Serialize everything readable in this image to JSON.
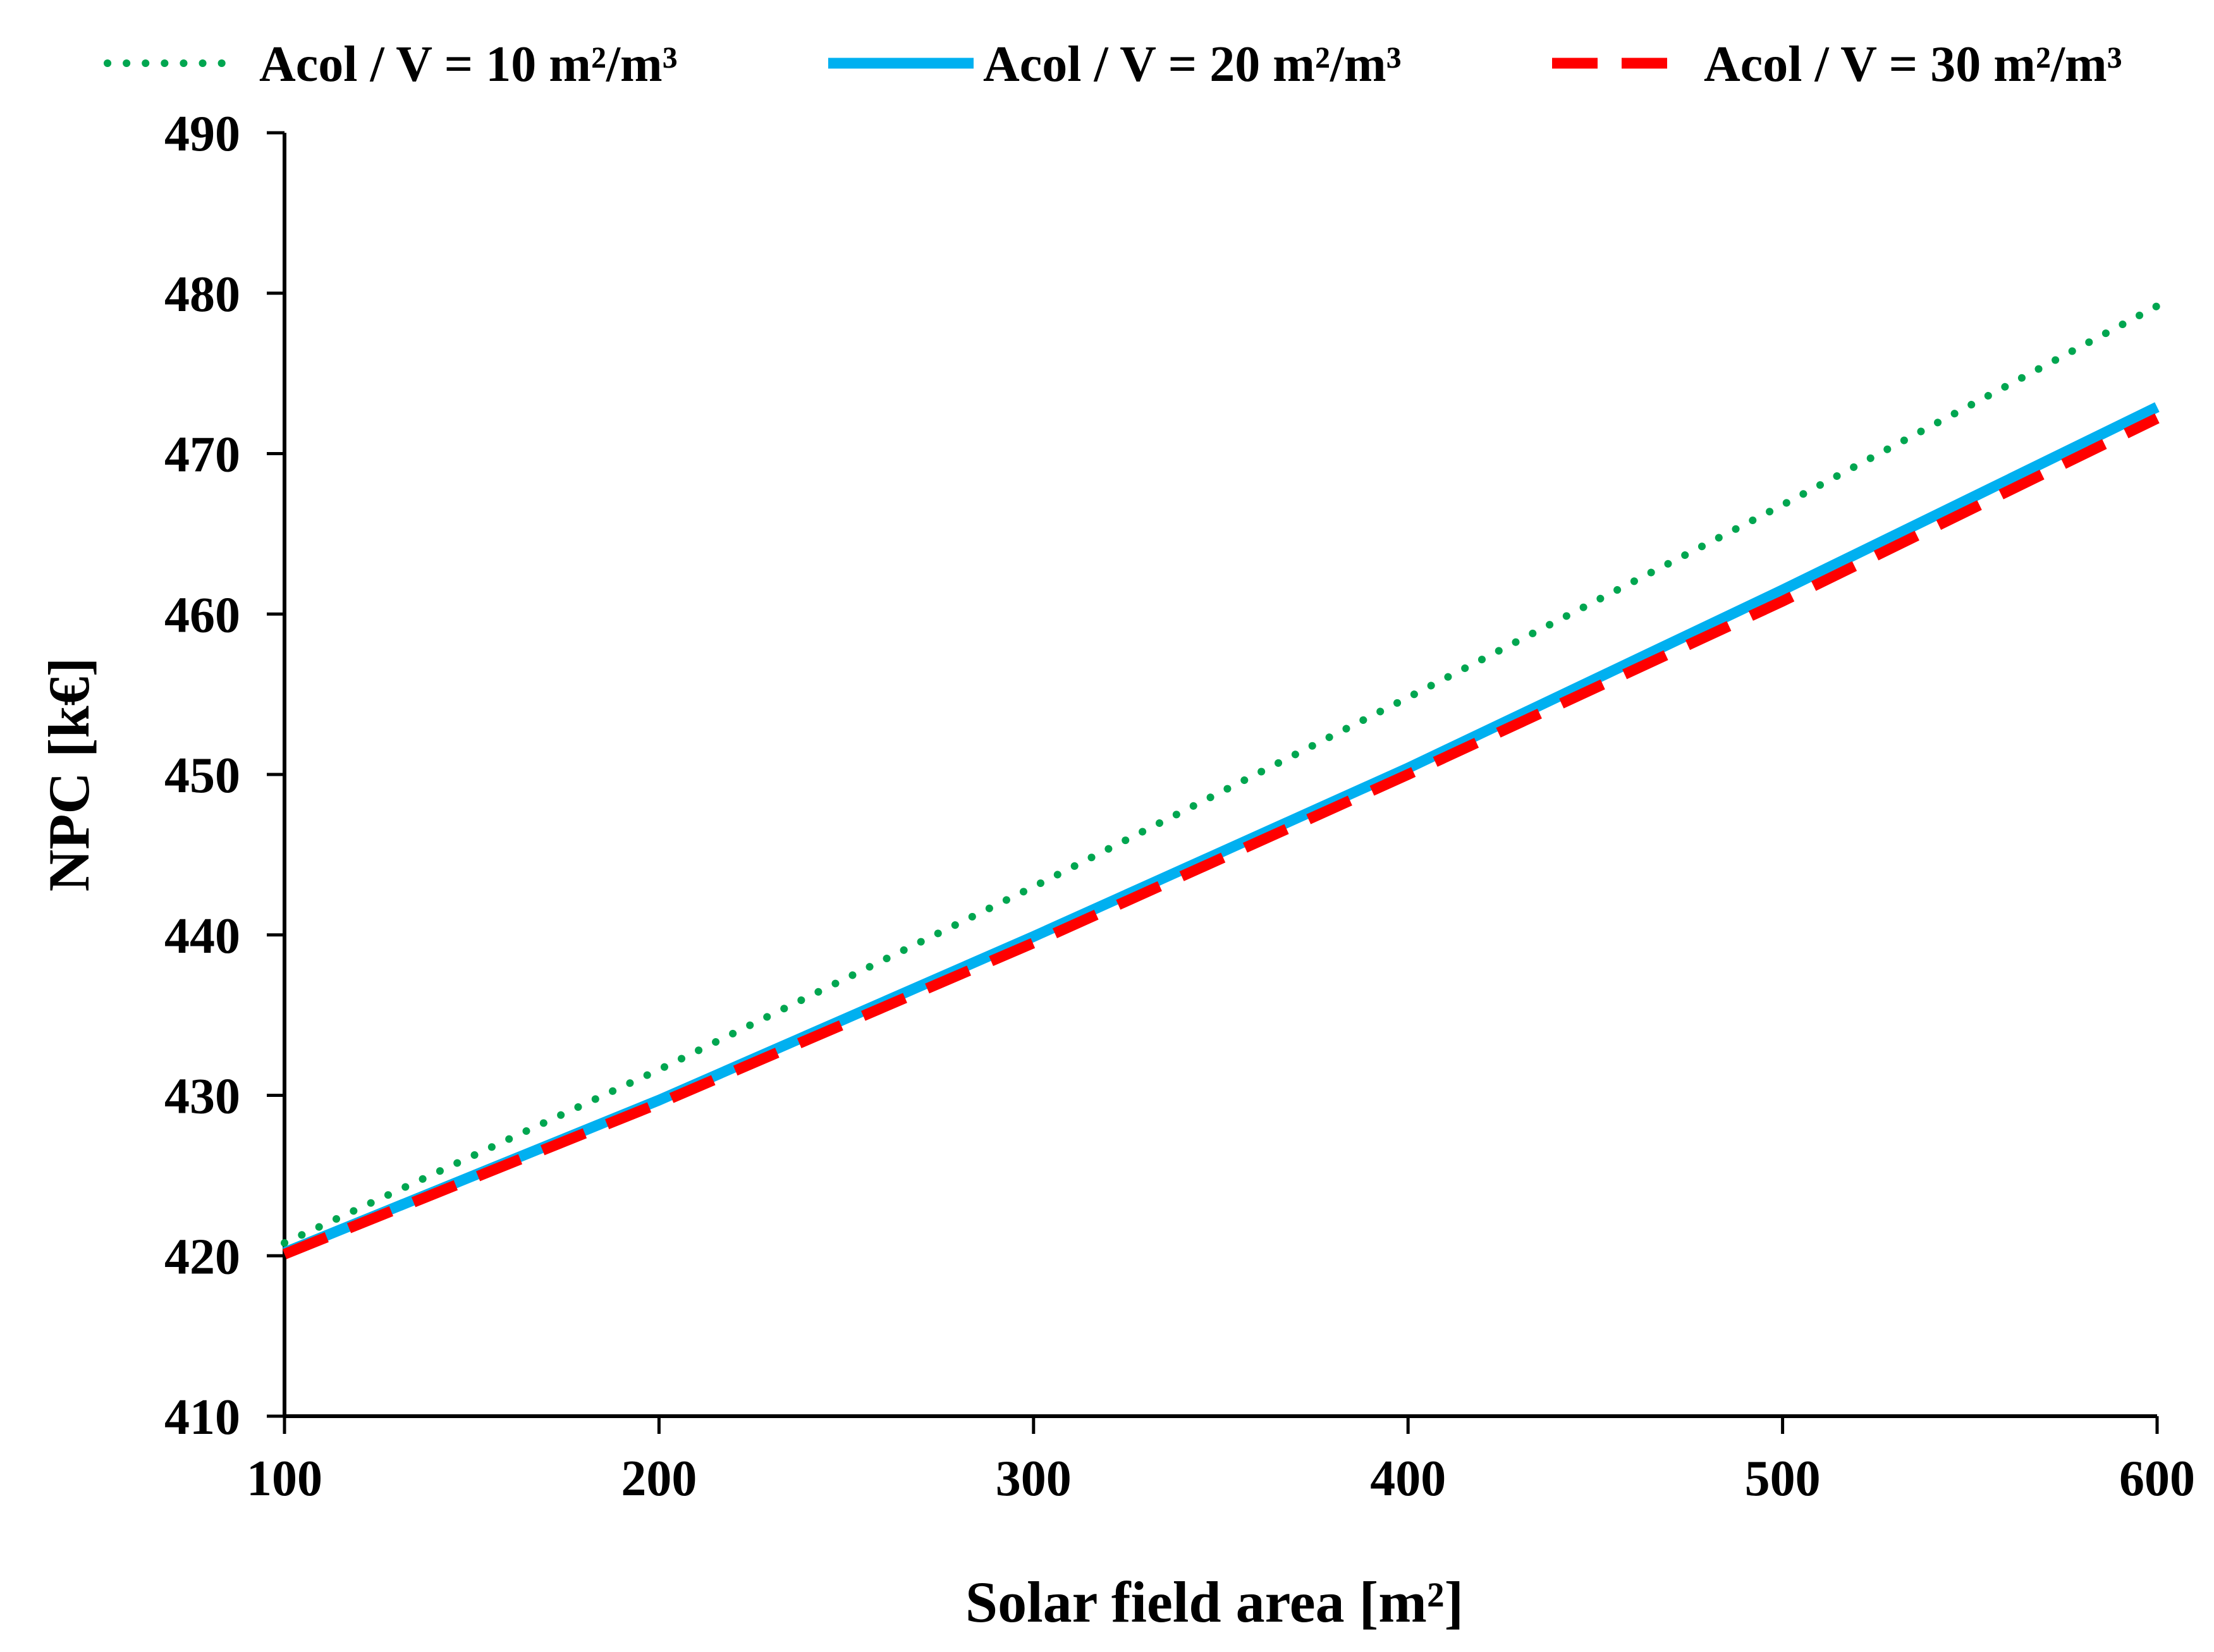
{
  "chart_data": {
    "type": "line",
    "title": "",
    "xlabel": "Solar field area [m²]",
    "ylabel": "NPC [k€]",
    "xlim": [
      100,
      600
    ],
    "ylim": [
      410,
      490
    ],
    "xticks": [
      100,
      200,
      300,
      400,
      500,
      600
    ],
    "yticks": [
      410,
      420,
      430,
      440,
      450,
      460,
      470,
      480,
      490
    ],
    "grid": false,
    "legend_position": "top",
    "x": [
      100,
      200,
      300,
      400,
      500,
      600
    ],
    "series": [
      {
        "name": "Acol / V = 10 m²/m³",
        "color": "#00A650",
        "style": "dotted",
        "values": [
          420.8,
          431.6,
          443.0,
          454.8,
          466.8,
          479.2
        ]
      },
      {
        "name": "Acol / V = 20 m²/m³",
        "color": "#00B0F0",
        "style": "solid",
        "values": [
          420.2,
          429.7,
          439.9,
          450.4,
          461.5,
          472.9
        ]
      },
      {
        "name": "Acol / V = 30 m²/m³",
        "color": "#FF0000",
        "style": "dashed",
        "values": [
          420.1,
          429.5,
          439.5,
          450.0,
          460.8,
          472.2
        ]
      }
    ]
  }
}
